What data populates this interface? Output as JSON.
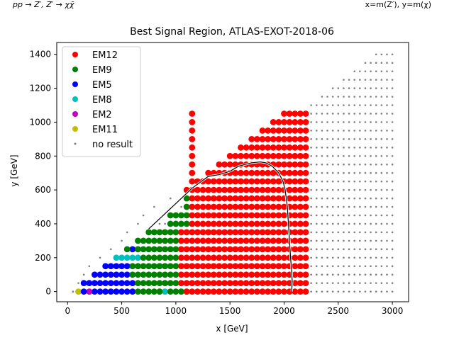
{
  "header": {
    "left_note": "pp → Z′, Z′ → χχ̄",
    "right_note": "x=m(Z′), y=m(χ)"
  },
  "chart_data": {
    "type": "scatter",
    "title": "Best Signal Region, ATLAS-EXOT-2018-06",
    "xlabel": "x [GeV]",
    "ylabel": "y [GeV]",
    "xlim": [
      -100,
      3150
    ],
    "ylim": [
      -60,
      1470
    ],
    "x_ticks": [
      0,
      500,
      1000,
      1500,
      2000,
      2500,
      3000
    ],
    "y_ticks": [
      0,
      200,
      400,
      600,
      800,
      1000,
      1200,
      1400
    ],
    "x_tick_labels": [
      "0",
      "500",
      "1000",
      "1500",
      "2000",
      "2500",
      "3000"
    ],
    "y_tick_labels": [
      "0",
      "200",
      "400",
      "600",
      "800",
      "1000",
      "1200",
      "1400"
    ],
    "grid": false,
    "legend_position": "top-left",
    "series": [
      {
        "name": "EM12",
        "color": "#ff0000",
        "marker": "large",
        "points": [
          [
            1150,
            0
          ],
          [
            1150,
            50
          ],
          [
            1150,
            100
          ],
          [
            1150,
            150
          ],
          [
            1150,
            200
          ],
          [
            1150,
            250
          ],
          [
            1150,
            300
          ],
          [
            1150,
            350
          ],
          [
            1150,
            400
          ],
          [
            1150,
            450
          ],
          [
            1150,
            500
          ],
          [
            1150,
            550
          ],
          [
            1150,
            600
          ],
          [
            1150,
            650
          ],
          [
            1150,
            700
          ],
          [
            1150,
            750
          ],
          [
            1150,
            800
          ],
          [
            1150,
            850
          ],
          [
            1150,
            900
          ],
          [
            1150,
            950
          ],
          [
            1150,
            1000
          ],
          [
            1150,
            1050
          ],
          [
            1100,
            0
          ],
          [
            1100,
            50
          ],
          [
            1100,
            100
          ],
          [
            1100,
            150
          ],
          [
            1100,
            200
          ],
          [
            1100,
            250
          ],
          [
            1100,
            300
          ],
          [
            1100,
            350
          ],
          [
            1050,
            350
          ],
          [
            1050,
            300
          ],
          [
            1050,
            250
          ],
          [
            1050,
            200
          ],
          [
            1050,
            150
          ],
          [
            1050,
            100
          ],
          [
            1050,
            50
          ]
        ]
      },
      {
        "name": "EM9",
        "color": "#008000",
        "marker": "large",
        "points": [
          [
            650,
            0
          ],
          [
            700,
            0
          ],
          [
            750,
            0
          ],
          [
            800,
            0
          ],
          [
            850,
            0
          ],
          [
            950,
            0
          ],
          [
            1000,
            0
          ],
          [
            1050,
            0
          ],
          [
            1100,
            0
          ],
          [
            650,
            50
          ],
          [
            700,
            50
          ],
          [
            750,
            50
          ],
          [
            800,
            50
          ],
          [
            850,
            50
          ],
          [
            900,
            50
          ],
          [
            950,
            50
          ],
          [
            1000,
            50
          ],
          [
            600,
            100
          ],
          [
            650,
            100
          ],
          [
            700,
            100
          ],
          [
            750,
            100
          ],
          [
            800,
            100
          ],
          [
            850,
            100
          ],
          [
            900,
            100
          ],
          [
            950,
            100
          ],
          [
            1000,
            100
          ],
          [
            600,
            150
          ],
          [
            650,
            150
          ],
          [
            700,
            150
          ],
          [
            750,
            150
          ],
          [
            800,
            150
          ],
          [
            850,
            150
          ],
          [
            900,
            150
          ],
          [
            950,
            150
          ],
          [
            1000,
            150
          ],
          [
            700,
            200
          ],
          [
            750,
            200
          ],
          [
            800,
            200
          ],
          [
            850,
            200
          ],
          [
            900,
            200
          ],
          [
            950,
            200
          ],
          [
            1000,
            200
          ],
          [
            550,
            250
          ],
          [
            650,
            250
          ],
          [
            700,
            250
          ],
          [
            750,
            250
          ],
          [
            800,
            250
          ],
          [
            850,
            250
          ],
          [
            900,
            250
          ],
          [
            950,
            250
          ],
          [
            1000,
            250
          ],
          [
            650,
            300
          ],
          [
            700,
            300
          ],
          [
            750,
            300
          ],
          [
            800,
            300
          ],
          [
            850,
            300
          ],
          [
            900,
            300
          ],
          [
            950,
            300
          ],
          [
            1000,
            300
          ],
          [
            750,
            350
          ],
          [
            800,
            350
          ],
          [
            850,
            350
          ],
          [
            900,
            350
          ],
          [
            950,
            350
          ],
          [
            1000,
            350
          ],
          [
            950,
            400
          ],
          [
            1000,
            400
          ],
          [
            1050,
            400
          ],
          [
            1100,
            400
          ],
          [
            950,
            450
          ],
          [
            1000,
            450
          ],
          [
            1050,
            450
          ]
        ]
      },
      {
        "name": "EM5",
        "color": "#0000ff",
        "marker": "large",
        "points": [
          [
            150,
            0
          ],
          [
            250,
            0
          ],
          [
            300,
            0
          ],
          [
            350,
            0
          ],
          [
            400,
            0
          ],
          [
            450,
            0
          ],
          [
            500,
            0
          ],
          [
            550,
            0
          ],
          [
            600,
            0
          ],
          [
            150,
            50
          ],
          [
            200,
            50
          ],
          [
            250,
            50
          ],
          [
            300,
            50
          ],
          [
            350,
            50
          ],
          [
            400,
            50
          ],
          [
            450,
            50
          ],
          [
            500,
            50
          ],
          [
            550,
            50
          ],
          [
            600,
            50
          ],
          [
            250,
            100
          ],
          [
            300,
            100
          ],
          [
            350,
            100
          ],
          [
            400,
            100
          ],
          [
            450,
            100
          ],
          [
            500,
            100
          ],
          [
            550,
            100
          ],
          [
            350,
            150
          ],
          [
            400,
            150
          ],
          [
            450,
            150
          ],
          [
            500,
            150
          ],
          [
            550,
            150
          ],
          [
            600,
            250
          ]
        ]
      },
      {
        "name": "EM8",
        "color": "#00bfbf",
        "marker": "large",
        "points": [
          [
            900,
            0
          ],
          [
            850,
            0
          ],
          [
            450,
            200
          ],
          [
            500,
            200
          ],
          [
            550,
            200
          ],
          [
            600,
            200
          ],
          [
            650,
            200
          ],
          [
            850,
            150
          ],
          [
            900,
            150
          ],
          [
            650,
            250
          ]
        ]
      },
      {
        "name": "EM2",
        "color": "#bf00bf",
        "marker": "large",
        "points": [
          [
            200,
            0
          ]
        ]
      },
      {
        "name": "EM11",
        "color": "#bfbf00",
        "marker": "large",
        "points": [
          [
            100,
            0
          ]
        ]
      },
      {
        "name": "no result",
        "color": "#808080",
        "marker": "small",
        "points": []
      }
    ],
    "exclusion_contour": [
      [
        750,
        370
      ],
      [
        850,
        430
      ],
      [
        1000,
        520
      ],
      [
        1150,
        610
      ],
      [
        1300,
        680
      ],
      [
        1400,
        690
      ],
      [
        1500,
        710
      ],
      [
        1580,
        740
      ],
      [
        1700,
        760
      ],
      [
        1780,
        765
      ],
      [
        1830,
        760
      ],
      [
        1890,
        740
      ],
      [
        1950,
        700
      ],
      [
        1990,
        650
      ],
      [
        2010,
        600
      ],
      [
        2030,
        500
      ],
      [
        2040,
        400
      ],
      [
        2050,
        300
      ],
      [
        2060,
        200
      ],
      [
        2070,
        120
      ],
      [
        2075,
        60
      ],
      [
        2070,
        0
      ]
    ]
  }
}
